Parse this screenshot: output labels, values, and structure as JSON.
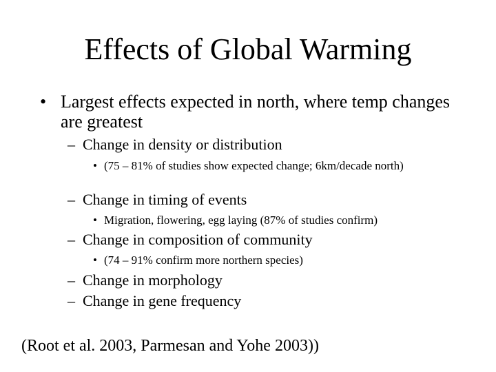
{
  "slide": {
    "title": "Effects of Global Warming",
    "bullet_marker": "•",
    "dash_marker": "–",
    "main_bullet": "Largest effects expected in north, where temp changes are greatest",
    "items": [
      {
        "text": "Change in density or distribution",
        "sub": "(75 – 81% of studies show expected change; 6km/decade north)"
      },
      {
        "text": "Change in timing of events",
        "sub": "Migration, flowering, egg laying (87% of studies confirm)"
      },
      {
        "text": "Change in composition of community",
        "sub": "(74 – 91% confirm more northern species)"
      },
      {
        "text": "Change in morphology"
      },
      {
        "text": "Change in gene frequency"
      }
    ],
    "footnote": "(Root et al. 2003, Parmesan and Yohe 2003))"
  }
}
